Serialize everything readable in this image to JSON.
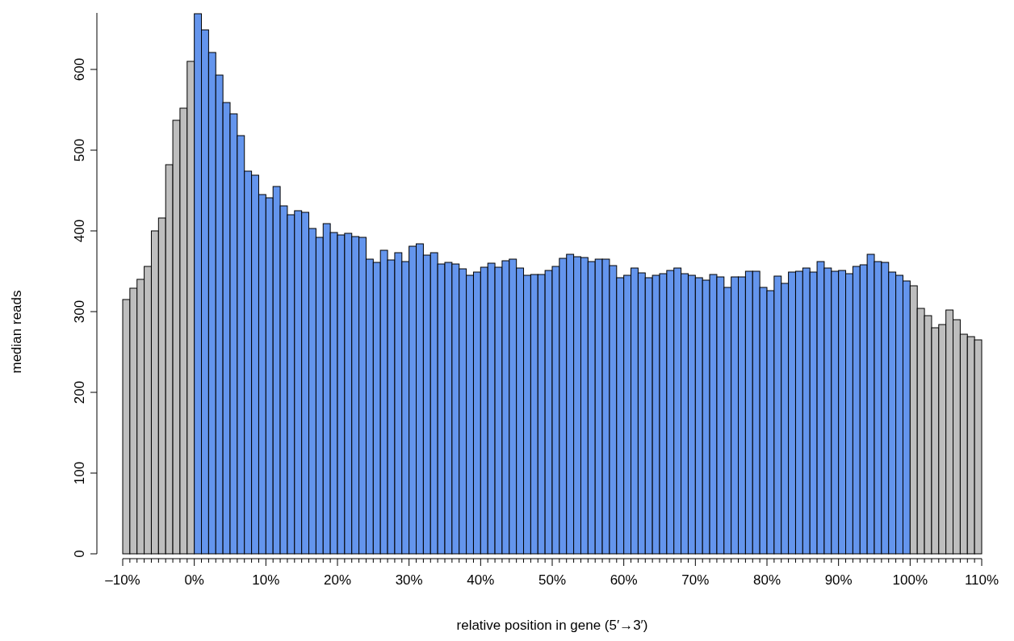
{
  "chart_data": {
    "type": "histogram",
    "xlabel": "relative position in gene (5′→3′)",
    "ylabel": "median reads",
    "bins": [
      -10,
      -9,
      -8,
      -7,
      -6,
      -5,
      -4,
      -3,
      -2,
      -1,
      0,
      1,
      2,
      3,
      4,
      5,
      6,
      7,
      8,
      9,
      10,
      11,
      12,
      13,
      14,
      15,
      16,
      17,
      18,
      19,
      20,
      21,
      22,
      23,
      24,
      25,
      26,
      27,
      28,
      29,
      30,
      31,
      32,
      33,
      34,
      35,
      36,
      37,
      38,
      39,
      40,
      41,
      42,
      43,
      44,
      45,
      46,
      47,
      48,
      49,
      50,
      51,
      52,
      53,
      54,
      55,
      56,
      57,
      58,
      59,
      60,
      61,
      62,
      63,
      64,
      65,
      66,
      67,
      68,
      69,
      70,
      71,
      72,
      73,
      74,
      75,
      76,
      77,
      78,
      79,
      80,
      81,
      82,
      83,
      84,
      85,
      86,
      87,
      88,
      89,
      90,
      91,
      92,
      93,
      94,
      95,
      96,
      97,
      98,
      99,
      100,
      101,
      102,
      103,
      104,
      105,
      106,
      107,
      108,
      109,
      110
    ],
    "values": [
      315,
      329,
      340,
      356,
      400,
      416,
      482,
      537,
      552,
      610,
      669,
      649,
      621,
      593,
      559,
      545,
      518,
      474,
      469,
      445,
      441,
      455,
      431,
      420,
      425,
      423,
      403,
      392,
      409,
      398,
      395,
      397,
      393,
      392,
      365,
      361,
      376,
      364,
      373,
      362,
      381,
      384,
      370,
      373,
      359,
      361,
      359,
      353,
      345,
      349,
      355,
      360,
      355,
      363,
      365,
      354,
      345,
      346,
      346,
      351,
      356,
      366,
      371,
      368,
      367,
      362,
      365,
      365,
      357,
      342,
      345,
      354,
      348,
      342,
      345,
      347,
      351,
      354,
      347,
      345,
      342,
      339,
      346,
      343,
      330,
      343,
      343,
      350,
      350,
      330,
      326,
      344,
      335,
      349,
      350,
      354,
      349,
      362,
      354,
      350,
      351,
      347,
      356,
      358,
      371,
      362,
      361,
      349,
      345,
      338,
      332,
      304,
      295,
      280,
      284,
      302,
      290,
      272,
      269,
      265
    ],
    "colors": [
      "#bebebe",
      "#bebebe",
      "#bebebe",
      "#bebebe",
      "#bebebe",
      "#bebebe",
      "#bebebe",
      "#bebebe",
      "#bebebe",
      "#bebebe",
      "#6495ed",
      "#6495ed",
      "#6495ed",
      "#6495ed",
      "#6495ed",
      "#6495ed",
      "#6495ed",
      "#6495ed",
      "#6495ed",
      "#6495ed",
      "#6495ed",
      "#6495ed",
      "#6495ed",
      "#6495ed",
      "#6495ed",
      "#6495ed",
      "#6495ed",
      "#6495ed",
      "#6495ed",
      "#6495ed",
      "#6495ed",
      "#6495ed",
      "#6495ed",
      "#6495ed",
      "#6495ed",
      "#6495ed",
      "#6495ed",
      "#6495ed",
      "#6495ed",
      "#6495ed",
      "#6495ed",
      "#6495ed",
      "#6495ed",
      "#6495ed",
      "#6495ed",
      "#6495ed",
      "#6495ed",
      "#6495ed",
      "#6495ed",
      "#6495ed",
      "#6495ed",
      "#6495ed",
      "#6495ed",
      "#6495ed",
      "#6495ed",
      "#6495ed",
      "#6495ed",
      "#6495ed",
      "#6495ed",
      "#6495ed",
      "#6495ed",
      "#6495ed",
      "#6495ed",
      "#6495ed",
      "#6495ed",
      "#6495ed",
      "#6495ed",
      "#6495ed",
      "#6495ed",
      "#6495ed",
      "#6495ed",
      "#6495ed",
      "#6495ed",
      "#6495ed",
      "#6495ed",
      "#6495ed",
      "#6495ed",
      "#6495ed",
      "#6495ed",
      "#6495ed",
      "#6495ed",
      "#6495ed",
      "#6495ed",
      "#6495ed",
      "#6495ed",
      "#6495ed",
      "#6495ed",
      "#6495ed",
      "#6495ed",
      "#6495ed",
      "#6495ed",
      "#6495ed",
      "#6495ed",
      "#6495ed",
      "#6495ed",
      "#6495ed",
      "#6495ed",
      "#6495ed",
      "#6495ed",
      "#6495ed",
      "#6495ed",
      "#6495ed",
      "#6495ed",
      "#6495ed",
      "#6495ed",
      "#6495ed",
      "#6495ed",
      "#6495ed",
      "#6495ed",
      "#6495ed",
      "#bebebe",
      "#bebebe",
      "#bebebe",
      "#bebebe",
      "#bebebe",
      "#bebebe",
      "#bebebe",
      "#bebebe",
      "#bebebe",
      "#bebebe"
    ],
    "xlim": [
      -10,
      110
    ],
    "ylim": [
      0,
      670
    ],
    "yticks": [
      0,
      100,
      200,
      300,
      400,
      500,
      600
    ],
    "xticks": [
      {
        "value": -10,
        "label": "–10%"
      },
      {
        "value": -9,
        "label": null
      },
      {
        "value": -8,
        "label": null
      },
      {
        "value": -7,
        "label": null
      },
      {
        "value": -6,
        "label": null
      },
      {
        "value": -5,
        "label": null
      },
      {
        "value": -4,
        "label": null
      },
      {
        "value": -3,
        "label": null
      },
      {
        "value": -2,
        "label": null
      },
      {
        "value": -1,
        "label": null
      },
      {
        "value": 0,
        "label": "0%"
      },
      {
        "value": 1,
        "label": null
      },
      {
        "value": 2,
        "label": null
      },
      {
        "value": 3,
        "label": null
      },
      {
        "value": 4,
        "label": null
      },
      {
        "value": 5,
        "label": null
      },
      {
        "value": 6,
        "label": null
      },
      {
        "value": 7,
        "label": null
      },
      {
        "value": 8,
        "label": null
      },
      {
        "value": 9,
        "label": null
      },
      {
        "value": 10,
        "label": "10%"
      },
      {
        "value": 11,
        "label": null
      },
      {
        "value": 12,
        "label": null
      },
      {
        "value": 13,
        "label": null
      },
      {
        "value": 14,
        "label": null
      },
      {
        "value": 15,
        "label": null
      },
      {
        "value": 16,
        "label": null
      },
      {
        "value": 17,
        "label": null
      },
      {
        "value": 18,
        "label": null
      },
      {
        "value": 19,
        "label": null
      },
      {
        "value": 20,
        "label": "20%"
      },
      {
        "value": 21,
        "label": null
      },
      {
        "value": 22,
        "label": null
      },
      {
        "value": 23,
        "label": null
      },
      {
        "value": 24,
        "label": null
      },
      {
        "value": 25,
        "label": null
      },
      {
        "value": 26,
        "label": null
      },
      {
        "value": 27,
        "label": null
      },
      {
        "value": 28,
        "label": null
      },
      {
        "value": 29,
        "label": null
      },
      {
        "value": 30,
        "label": "30%"
      },
      {
        "value": 31,
        "label": null
      },
      {
        "value": 32,
        "label": null
      },
      {
        "value": 33,
        "label": null
      },
      {
        "value": 34,
        "label": null
      },
      {
        "value": 35,
        "label": null
      },
      {
        "value": 36,
        "label": null
      },
      {
        "value": 37,
        "label": null
      },
      {
        "value": 38,
        "label": null
      },
      {
        "value": 39,
        "label": null
      },
      {
        "value": 40,
        "label": "40%"
      },
      {
        "value": 41,
        "label": null
      },
      {
        "value": 42,
        "label": null
      },
      {
        "value": 43,
        "label": null
      },
      {
        "value": 44,
        "label": null
      },
      {
        "value": 45,
        "label": null
      },
      {
        "value": 46,
        "label": null
      },
      {
        "value": 47,
        "label": null
      },
      {
        "value": 48,
        "label": null
      },
      {
        "value": 49,
        "label": null
      },
      {
        "value": 50,
        "label": "50%"
      },
      {
        "value": 51,
        "label": null
      },
      {
        "value": 52,
        "label": null
      },
      {
        "value": 53,
        "label": null
      },
      {
        "value": 54,
        "label": null
      },
      {
        "value": 55,
        "label": null
      },
      {
        "value": 56,
        "label": null
      },
      {
        "value": 57,
        "label": null
      },
      {
        "value": 58,
        "label": null
      },
      {
        "value": 59,
        "label": null
      },
      {
        "value": 60,
        "label": "60%"
      },
      {
        "value": 61,
        "label": null
      },
      {
        "value": 62,
        "label": null
      },
      {
        "value": 63,
        "label": null
      },
      {
        "value": 64,
        "label": null
      },
      {
        "value": 65,
        "label": null
      },
      {
        "value": 66,
        "label": null
      },
      {
        "value": 67,
        "label": null
      },
      {
        "value": 68,
        "label": null
      },
      {
        "value": 69,
        "label": null
      },
      {
        "value": 70,
        "label": "70%"
      },
      {
        "value": 71,
        "label": null
      },
      {
        "value": 72,
        "label": null
      },
      {
        "value": 73,
        "label": null
      },
      {
        "value": 74,
        "label": null
      },
      {
        "value": 75,
        "label": null
      },
      {
        "value": 76,
        "label": null
      },
      {
        "value": 77,
        "label": null
      },
      {
        "value": 78,
        "label": null
      },
      {
        "value": 79,
        "label": null
      },
      {
        "value": 80,
        "label": "80%"
      },
      {
        "value": 81,
        "label": null
      },
      {
        "value": 82,
        "label": null
      },
      {
        "value": 83,
        "label": null
      },
      {
        "value": 84,
        "label": null
      },
      {
        "value": 85,
        "label": null
      },
      {
        "value": 86,
        "label": null
      },
      {
        "value": 87,
        "label": null
      },
      {
        "value": 88,
        "label": null
      },
      {
        "value": 89,
        "label": null
      },
      {
        "value": 90,
        "label": "90%"
      },
      {
        "value": 91,
        "label": null
      },
      {
        "value": 92,
        "label": null
      },
      {
        "value": 93,
        "label": null
      },
      {
        "value": 94,
        "label": null
      },
      {
        "value": 95,
        "label": null
      },
      {
        "value": 96,
        "label": null
      },
      {
        "value": 97,
        "label": null
      },
      {
        "value": 98,
        "label": null
      },
      {
        "value": 99,
        "label": null
      },
      {
        "value": 100,
        "label": "100%"
      },
      {
        "value": 101,
        "label": null
      },
      {
        "value": 102,
        "label": null
      },
      {
        "value": 103,
        "label": null
      },
      {
        "value": 104,
        "label": null
      },
      {
        "value": 105,
        "label": null
      },
      {
        "value": 106,
        "label": null
      },
      {
        "value": 107,
        "label": null
      },
      {
        "value": 108,
        "label": null
      },
      {
        "value": 109,
        "label": null
      },
      {
        "value": 110,
        "label": "110%"
      }
    ]
  }
}
